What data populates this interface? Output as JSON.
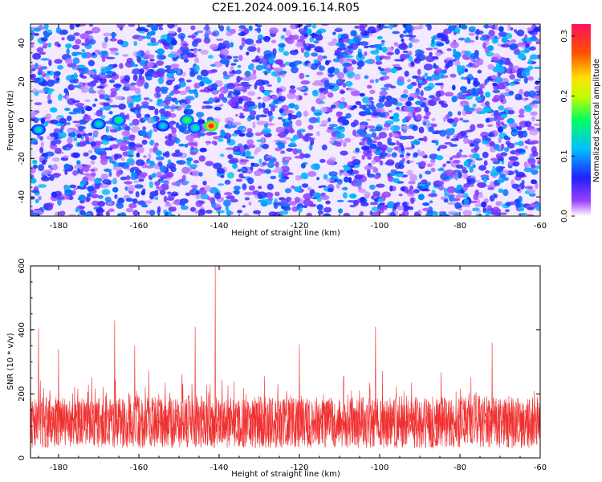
{
  "title": "C2E1.2024.009.16.14.R05",
  "chart_data": [
    {
      "type": "heatmap",
      "xlabel": "Height of straight line (km)",
      "ylabel": "Frequency (Hz)",
      "xlim": [
        -187,
        -60
      ],
      "ylim": [
        -50,
        50
      ],
      "xticks": [
        -180,
        -160,
        -140,
        -120,
        -100,
        -80,
        -60
      ],
      "yticks": [
        -40,
        -20,
        0,
        20,
        40
      ],
      "colorbar": {
        "label": "Normalized spectral amplitude",
        "range": [
          0.0,
          0.32
        ],
        "ticks": [
          0.0,
          0.1,
          0.2,
          0.3
        ],
        "colors": [
          "#ffffff",
          "#9a40ff",
          "#2020ff",
          "#00c0ff",
          "#00ff60",
          "#c0ff00",
          "#ffe000",
          "#ff5000",
          "#ff1060"
        ]
      },
      "hotspots": [
        {
          "x": -142,
          "y": -3,
          "value": 0.3
        },
        {
          "x": -148,
          "y": 0,
          "value": 0.17
        },
        {
          "x": -165,
          "y": 0,
          "value": 0.15
        },
        {
          "x": -170,
          "y": -2,
          "value": 0.13
        },
        {
          "x": -154,
          "y": -3,
          "value": 0.12
        },
        {
          "x": -185,
          "y": -5,
          "value": 0.13
        },
        {
          "x": -146,
          "y": -4,
          "value": 0.14
        }
      ],
      "background_level": 0.05,
      "grid": false
    },
    {
      "type": "line",
      "xlabel": "Height of straight line (km)",
      "ylabel": "SNR (10 * v/v)",
      "xlim": [
        -187,
        -60
      ],
      "ylim": [
        0,
        600
      ],
      "xticks": [
        -180,
        -160,
        -140,
        -120,
        -100,
        -80,
        -60
      ],
      "yticks": [
        0,
        200,
        400,
        600
      ],
      "color": "#f03030",
      "baseline_range": [
        30,
        250
      ],
      "peaks": [
        {
          "x": -141,
          "y": 600
        },
        {
          "x": -185,
          "y": 405
        },
        {
          "x": -166,
          "y": 430
        },
        {
          "x": -146,
          "y": 410
        },
        {
          "x": -101,
          "y": 410
        },
        {
          "x": -120,
          "y": 355
        },
        {
          "x": -72,
          "y": 360
        },
        {
          "x": -161,
          "y": 350
        },
        {
          "x": -180,
          "y": 340
        }
      ],
      "grid": false
    }
  ]
}
